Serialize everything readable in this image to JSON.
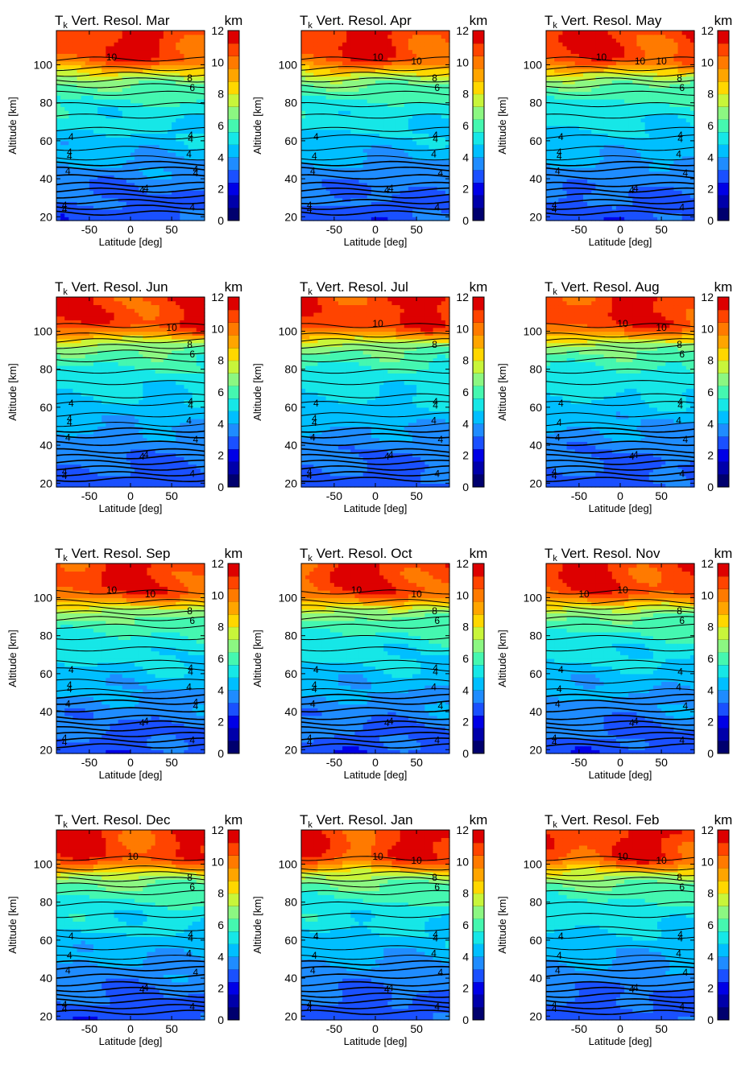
{
  "chart_data": {
    "type": "heatmap",
    "title_prefix": "T",
    "title_subscript": "k",
    "title_main": "Vert. Resol.",
    "xlabel": "Latitude [deg]",
    "ylabel": "Altitude [km]",
    "xlim": [
      -90,
      90
    ],
    "ylim": [
      18,
      118
    ],
    "x_ticks": [
      -50,
      0,
      50
    ],
    "y_ticks": [
      20,
      40,
      60,
      80,
      100
    ],
    "colorbar": {
      "unit": "km",
      "range": [
        0,
        12
      ],
      "ticks": [
        0,
        2,
        4,
        6,
        8,
        10,
        12
      ],
      "colors": [
        "#00006e",
        "#0000aa",
        "#0000e6",
        "#1a50ff",
        "#1f8cff",
        "#00bfff",
        "#16e7e7",
        "#45f7b0",
        "#8cf782",
        "#c8f53a",
        "#ffd700",
        "#ffa500",
        "#ff7a00",
        "#ff4400",
        "#dd0000"
      ]
    },
    "base_profile": {
      "altitude": [
        18,
        25,
        30,
        35,
        40,
        45,
        50,
        55,
        60,
        65,
        70,
        75,
        80,
        85,
        90,
        93,
        96,
        99,
        102,
        105,
        110,
        118
      ],
      "resolution_km": [
        2.9,
        3.1,
        3.3,
        3.5,
        3.7,
        3.9,
        4.1,
        4.3,
        4.5,
        4.7,
        5.0,
        5.2,
        5.5,
        5.9,
        6.4,
        7.2,
        8.3,
        9.5,
        10.6,
        10.9,
        11.0,
        11.1
      ]
    },
    "panels": [
      {
        "month": "Mar",
        "contour_labels": [
          "4",
          "4",
          "4",
          "4",
          "4",
          "4",
          "4",
          "4",
          "4",
          "4",
          "4",
          "4",
          "4",
          "4",
          "6",
          "8",
          "10"
        ]
      },
      {
        "month": "Apr",
        "contour_labels": [
          "4",
          "4",
          "4",
          "4",
          "4",
          "4",
          "4",
          "4",
          "4",
          "4",
          "4",
          "4",
          "6",
          "8",
          "10",
          "10"
        ]
      },
      {
        "month": "May",
        "contour_labels": [
          "4",
          "4",
          "4",
          "4",
          "4",
          "4",
          "4",
          "4",
          "4",
          "4",
          "4",
          "4",
          "4",
          "6",
          "8",
          "10",
          "10",
          "10"
        ]
      },
      {
        "month": "Jun",
        "contour_labels": [
          "4",
          "4",
          "4",
          "4",
          "4",
          "4",
          "4",
          "4",
          "4",
          "4",
          "4",
          "4",
          "4",
          "6",
          "8",
          "10"
        ]
      },
      {
        "month": "Jul",
        "contour_labels": [
          "4",
          "4",
          "4",
          "4",
          "4",
          "4",
          "4",
          "4",
          "4",
          "4",
          "4",
          "4",
          "4",
          "8",
          "10"
        ]
      },
      {
        "month": "Aug",
        "contour_labels": [
          "4",
          "4",
          "4",
          "4",
          "4",
          "4",
          "4",
          "4",
          "4",
          "4",
          "4",
          "4",
          "6",
          "8",
          "10",
          "10"
        ]
      },
      {
        "month": "Sep",
        "contour_labels": [
          "4",
          "4",
          "4",
          "4",
          "4",
          "4",
          "4",
          "4",
          "4",
          "4",
          "4",
          "4",
          "4",
          "4",
          "6",
          "8",
          "10",
          "10"
        ]
      },
      {
        "month": "Oct",
        "contour_labels": [
          "4",
          "4",
          "4",
          "4",
          "4",
          "4",
          "4",
          "4",
          "4",
          "4",
          "4",
          "4",
          "4",
          "6",
          "8",
          "10",
          "10"
        ]
      },
      {
        "month": "Nov",
        "contour_labels": [
          "4",
          "4",
          "4",
          "4",
          "4",
          "4",
          "4",
          "4",
          "4",
          "4",
          "4",
          "6",
          "8",
          "10",
          "10"
        ]
      },
      {
        "month": "Dec",
        "contour_labels": [
          "4",
          "4",
          "4",
          "4",
          "4",
          "4",
          "4",
          "4",
          "4",
          "4",
          "4",
          "4",
          "6",
          "8",
          "10"
        ]
      },
      {
        "month": "Jan",
        "contour_labels": [
          "4",
          "4",
          "4",
          "4",
          "4",
          "4",
          "4",
          "4",
          "4",
          "4",
          "4",
          "4",
          "6",
          "8",
          "10",
          "10"
        ]
      },
      {
        "month": "Feb",
        "contour_labels": [
          "4",
          "4",
          "4",
          "4",
          "4",
          "4",
          "4",
          "4",
          "4",
          "4",
          "4",
          "4",
          "6",
          "8",
          "10",
          "10"
        ]
      }
    ]
  }
}
